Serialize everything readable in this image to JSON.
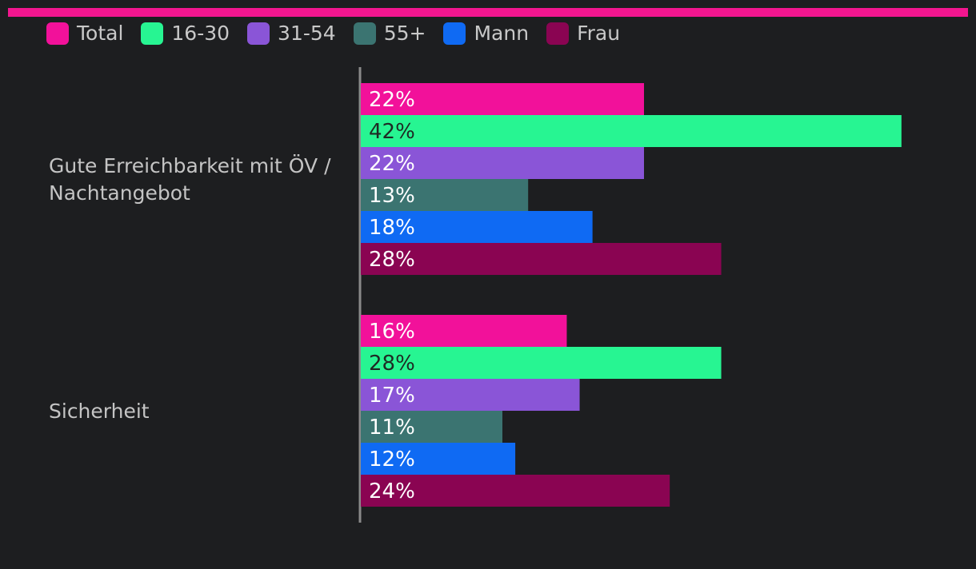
{
  "colors": {
    "background": "#1d1e20",
    "accent": "#f2168f",
    "axis": "#8a8a8a"
  },
  "chart_data": {
    "type": "bar",
    "orientation": "horizontal",
    "value_suffix": "%",
    "categories": [
      [
        "Gute Erreichbarkeit mit ÖV /",
        "Nachtangebot"
      ],
      [
        "Sicherheit"
      ]
    ],
    "series": [
      {
        "name": "Total",
        "color": "#f2119a",
        "label_color": "#ffffff",
        "values": [
          22,
          16
        ]
      },
      {
        "name": "16-30",
        "color": "#27f592",
        "label_color": "#1e2a24",
        "values": [
          42,
          28
        ]
      },
      {
        "name": "31-54",
        "color": "#8a55d7",
        "label_color": "#ffffff",
        "values": [
          22,
          17
        ]
      },
      {
        "name": "55+",
        "color": "#3b7471",
        "label_color": "#ffffff",
        "values": [
          13,
          11
        ]
      },
      {
        "name": "Mann",
        "color": "#0f6af3",
        "label_color": "#ffffff",
        "values": [
          18,
          12
        ]
      },
      {
        "name": "Frau",
        "color": "#8a0452",
        "label_color": "#ffffff",
        "values": [
          28,
          24
        ]
      }
    ],
    "xlim": [
      0,
      44
    ],
    "legend_position": "top-left",
    "grid": false
  }
}
